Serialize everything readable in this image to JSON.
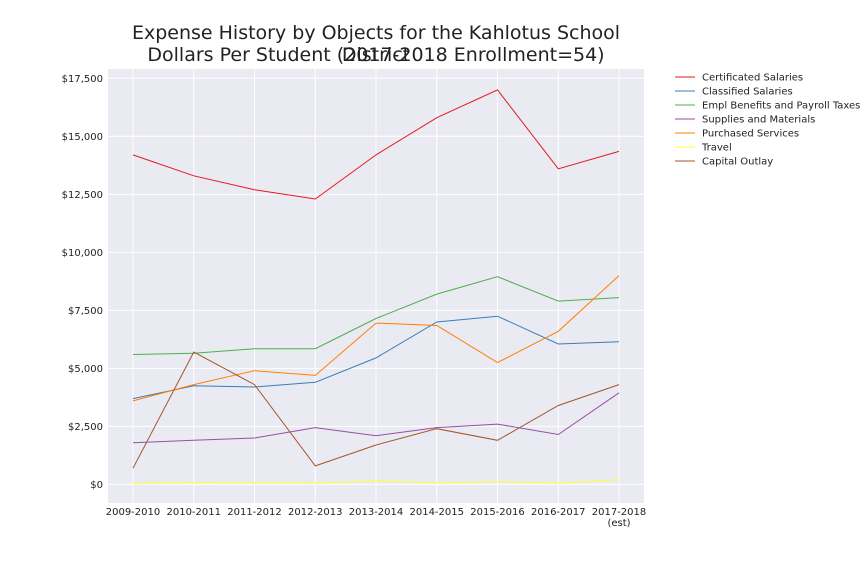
{
  "chart_data": {
    "type": "line",
    "title": "Expense History by Objects for the Kahlotus School District",
    "subtitle": "Dollars Per Student (2017-2018 Enrollment=54)",
    "xlabel": "",
    "ylabel": "",
    "categories": [
      "2009-2010",
      "2010-2011",
      "2011-2012",
      "2012-2013",
      "2013-2014",
      "2014-2015",
      "2015-2016",
      "2016-2017",
      "2017-2018"
    ],
    "category_sublabels": [
      "",
      "",
      "",
      "",
      "",
      "",
      "",
      "",
      "(est)"
    ],
    "y_ticks": [
      0,
      2500,
      5000,
      7500,
      10000,
      12500,
      15000,
      17500
    ],
    "y_tick_labels": [
      "$0",
      "$2,500",
      "$5,000",
      "$7,500",
      "$10,000",
      "$12,500",
      "$15,000",
      "$17,500"
    ],
    "ylim": [
      -800,
      17900
    ],
    "grid": true,
    "legend_position": "outside-top-right",
    "background": "#EAEAF2",
    "series": [
      {
        "name": "Certificated Salaries",
        "color": "#E41A1C",
        "values": [
          14200,
          13300,
          12700,
          12300,
          14200,
          15800,
          17000,
          13600,
          14350
        ]
      },
      {
        "name": "Classified Salaries",
        "color": "#377EB8",
        "values": [
          3700,
          4250,
          4200,
          4400,
          5450,
          7000,
          7250,
          6050,
          6150
        ]
      },
      {
        "name": "Empl Benefits and Payroll Taxes",
        "color": "#4DAF4A",
        "values": [
          5600,
          5650,
          5850,
          5850,
          7150,
          8200,
          8950,
          7900,
          8050
        ]
      },
      {
        "name": "Supplies and Materials",
        "color": "#984EA3",
        "values": [
          1800,
          1900,
          2000,
          2450,
          2100,
          2450,
          2600,
          2150,
          3950
        ]
      },
      {
        "name": "Purchased Services",
        "color": "#FF7F00",
        "values": [
          3600,
          4300,
          4900,
          4700,
          6950,
          6850,
          5250,
          6600,
          9000
        ]
      },
      {
        "name": "Travel",
        "color": "#FFFF33",
        "values": [
          30,
          80,
          60,
          50,
          150,
          60,
          120,
          50,
          200
        ]
      },
      {
        "name": "Capital Outlay",
        "color": "#A65628",
        "values": [
          700,
          5700,
          4300,
          800,
          1700,
          2400,
          1900,
          3400,
          4300
        ]
      }
    ]
  }
}
